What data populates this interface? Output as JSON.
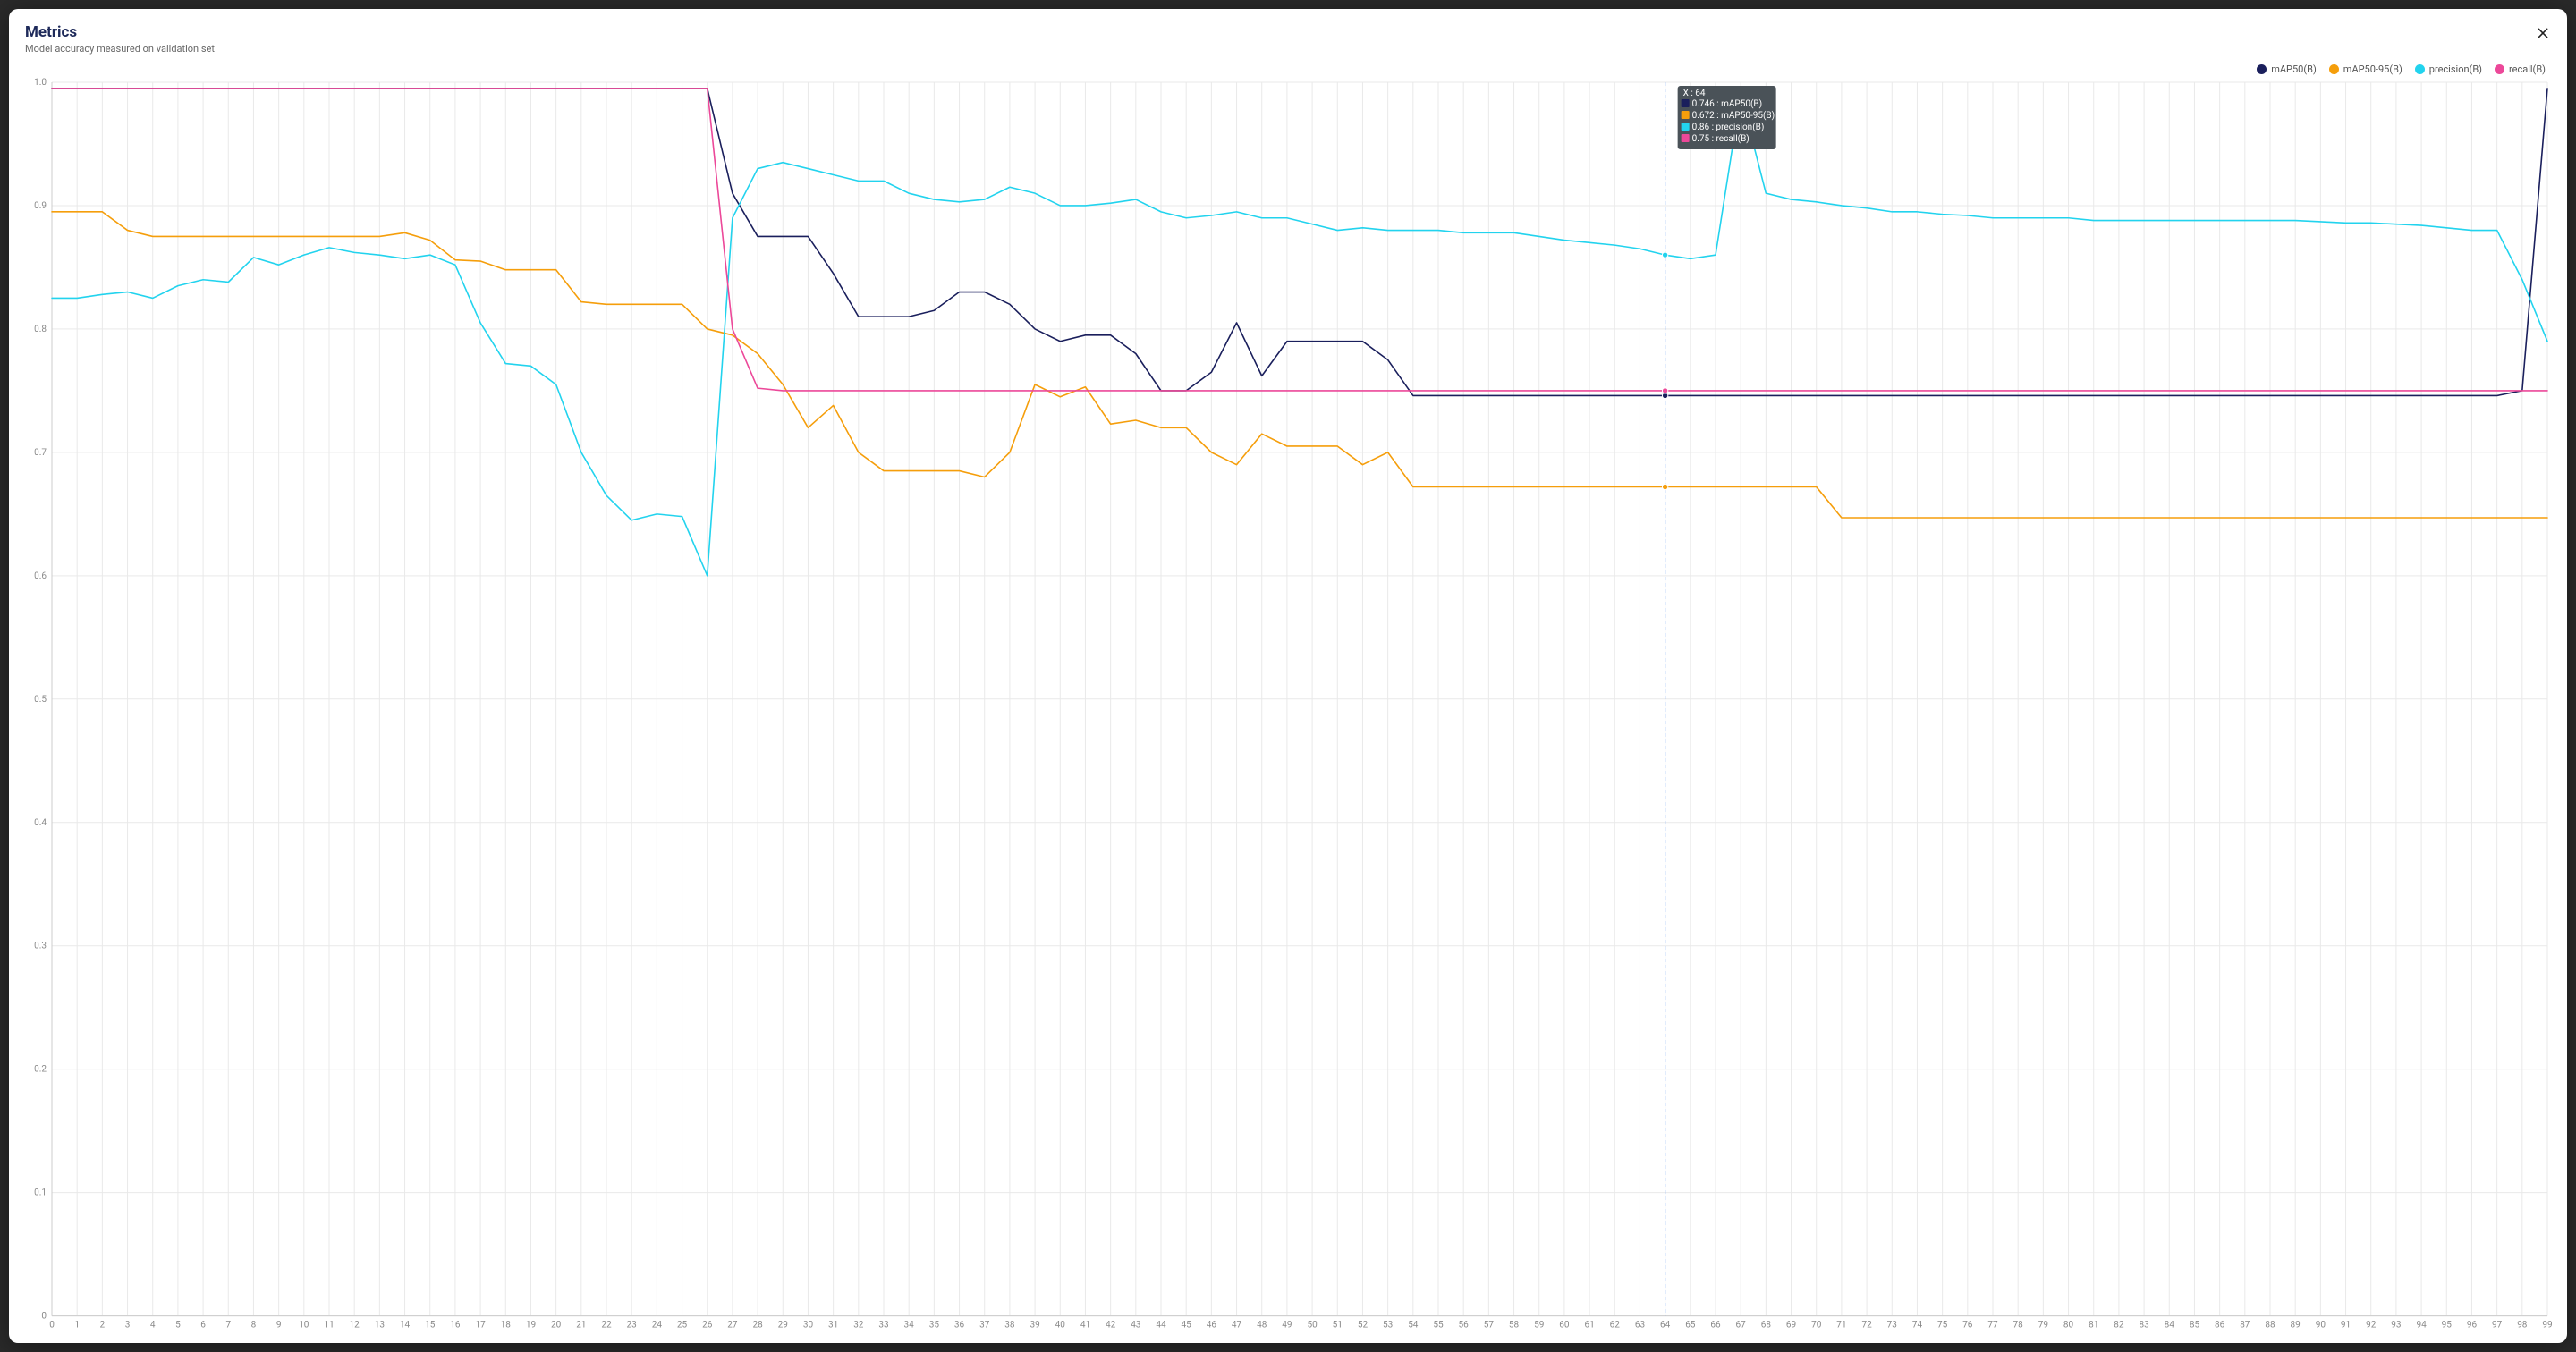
{
  "header": {
    "title": "Metrics",
    "subtitle": "Model accuracy measured on validation set"
  },
  "chart": {
    "type": "line",
    "background_color": "#ffffff",
    "grid_color": "#e9e9e9",
    "axis_color": "#cccccc",
    "tick_color": "#888888",
    "tick_fontsize": 10,
    "x": {
      "min": 0,
      "max": 99,
      "tick_step": 1
    },
    "y": {
      "min": 0,
      "max": 1.0,
      "tick_step": 0.1,
      "labels": [
        "0",
        "0.1",
        "0.2",
        "0.3",
        "0.4",
        "0.5",
        "0.6",
        "0.7",
        "0.8",
        "0.9",
        "1.0"
      ]
    },
    "crosshair": {
      "x": 64,
      "color": "#3b82f6",
      "dash": "4 3",
      "width": 1
    },
    "tooltip": {
      "bg": "#4a5258",
      "text_color": "#ffffff",
      "header": "X : 64",
      "rows": [
        {
          "color": "#1a1f5c",
          "value": "0.746",
          "name": "mAP50(B)"
        },
        {
          "color": "#f59e0b",
          "value": "0.672",
          "name": "mAP50-95(B)"
        },
        {
          "color": "#22d3ee",
          "value": "0.86",
          "name": "precision(B)"
        },
        {
          "color": "#ec4899",
          "value": "0.75",
          "name": "recall(B)"
        }
      ]
    },
    "legend": {
      "items": [
        {
          "label": "mAP50(B)",
          "color": "#1a1f5c"
        },
        {
          "label": "mAP50-95(B)",
          "color": "#f59e0b"
        },
        {
          "label": "precision(B)",
          "color": "#22d3ee"
        },
        {
          "label": "recall(B)",
          "color": "#ec4899"
        }
      ]
    },
    "series": [
      {
        "name": "mAP50(B)",
        "color": "#1a1f5c",
        "width": 1.6,
        "values": [
          0.995,
          0.995,
          0.995,
          0.995,
          0.995,
          0.995,
          0.995,
          0.995,
          0.995,
          0.995,
          0.995,
          0.995,
          0.995,
          0.995,
          0.995,
          0.995,
          0.995,
          0.995,
          0.995,
          0.995,
          0.995,
          0.995,
          0.995,
          0.995,
          0.995,
          0.995,
          0.995,
          0.91,
          0.875,
          0.875,
          0.875,
          0.845,
          0.81,
          0.81,
          0.81,
          0.815,
          0.83,
          0.83,
          0.82,
          0.8,
          0.79,
          0.795,
          0.795,
          0.78,
          0.75,
          0.75,
          0.765,
          0.805,
          0.762,
          0.79,
          0.79,
          0.79,
          0.79,
          0.775,
          0.746,
          0.746,
          0.746,
          0.746,
          0.746,
          0.746,
          0.746,
          0.746,
          0.746,
          0.746,
          0.746,
          0.746,
          0.746,
          0.746,
          0.746,
          0.746,
          0.746,
          0.746,
          0.746,
          0.746,
          0.746,
          0.746,
          0.746,
          0.746,
          0.746,
          0.746,
          0.746,
          0.746,
          0.746,
          0.746,
          0.746,
          0.746,
          0.746,
          0.746,
          0.746,
          0.746,
          0.746,
          0.746,
          0.746,
          0.746,
          0.746,
          0.746,
          0.746,
          0.746,
          0.75,
          0.995
        ]
      },
      {
        "name": "mAP50-95(B)",
        "color": "#f59e0b",
        "width": 1.6,
        "values": [
          0.895,
          0.895,
          0.895,
          0.88,
          0.875,
          0.875,
          0.875,
          0.875,
          0.875,
          0.875,
          0.875,
          0.875,
          0.875,
          0.875,
          0.878,
          0.872,
          0.856,
          0.855,
          0.848,
          0.848,
          0.848,
          0.822,
          0.82,
          0.82,
          0.82,
          0.82,
          0.8,
          0.795,
          0.78,
          0.755,
          0.72,
          0.738,
          0.7,
          0.685,
          0.685,
          0.685,
          0.685,
          0.68,
          0.7,
          0.755,
          0.745,
          0.753,
          0.723,
          0.726,
          0.72,
          0.72,
          0.7,
          0.69,
          0.715,
          0.705,
          0.705,
          0.705,
          0.69,
          0.7,
          0.672,
          0.672,
          0.672,
          0.672,
          0.672,
          0.672,
          0.672,
          0.672,
          0.672,
          0.672,
          0.672,
          0.672,
          0.672,
          0.672,
          0.672,
          0.672,
          0.672,
          0.647,
          0.647,
          0.647,
          0.647,
          0.647,
          0.647,
          0.647,
          0.647,
          0.647,
          0.647,
          0.647,
          0.647,
          0.647,
          0.647,
          0.647,
          0.647,
          0.647,
          0.647,
          0.647,
          0.647,
          0.647,
          0.647,
          0.647,
          0.647,
          0.647,
          0.647,
          0.647,
          0.647,
          0.647
        ]
      },
      {
        "name": "precision(B)",
        "color": "#22d3ee",
        "width": 1.6,
        "values": [
          0.825,
          0.825,
          0.828,
          0.83,
          0.825,
          0.835,
          0.84,
          0.838,
          0.858,
          0.852,
          0.86,
          0.866,
          0.862,
          0.86,
          0.857,
          0.86,
          0.852,
          0.805,
          0.772,
          0.77,
          0.755,
          0.7,
          0.665,
          0.645,
          0.65,
          0.648,
          0.6,
          0.89,
          0.93,
          0.935,
          0.93,
          0.925,
          0.92,
          0.92,
          0.91,
          0.905,
          0.903,
          0.905,
          0.915,
          0.91,
          0.9,
          0.9,
          0.902,
          0.905,
          0.895,
          0.89,
          0.892,
          0.895,
          0.89,
          0.89,
          0.885,
          0.88,
          0.882,
          0.88,
          0.88,
          0.88,
          0.878,
          0.878,
          0.878,
          0.875,
          0.872,
          0.87,
          0.868,
          0.865,
          0.86,
          0.857,
          0.86,
          0.99,
          0.91,
          0.905,
          0.903,
          0.9,
          0.898,
          0.895,
          0.895,
          0.893,
          0.892,
          0.89,
          0.89,
          0.89,
          0.89,
          0.888,
          0.888,
          0.888,
          0.888,
          0.888,
          0.888,
          0.888,
          0.888,
          0.888,
          0.887,
          0.886,
          0.886,
          0.885,
          0.884,
          0.882,
          0.88,
          0.88,
          0.84,
          0.79
        ]
      },
      {
        "name": "recall(B)",
        "color": "#ec4899",
        "width": 1.6,
        "values": [
          0.995,
          0.995,
          0.995,
          0.995,
          0.995,
          0.995,
          0.995,
          0.995,
          0.995,
          0.995,
          0.995,
          0.995,
          0.995,
          0.995,
          0.995,
          0.995,
          0.995,
          0.995,
          0.995,
          0.995,
          0.995,
          0.995,
          0.995,
          0.995,
          0.995,
          0.995,
          0.995,
          0.8,
          0.752,
          0.75,
          0.75,
          0.75,
          0.75,
          0.75,
          0.75,
          0.75,
          0.75,
          0.75,
          0.75,
          0.75,
          0.75,
          0.75,
          0.75,
          0.75,
          0.75,
          0.75,
          0.75,
          0.75,
          0.75,
          0.75,
          0.75,
          0.75,
          0.75,
          0.75,
          0.75,
          0.75,
          0.75,
          0.75,
          0.75,
          0.75,
          0.75,
          0.75,
          0.75,
          0.75,
          0.75,
          0.75,
          0.75,
          0.75,
          0.75,
          0.75,
          0.75,
          0.75,
          0.75,
          0.75,
          0.75,
          0.75,
          0.75,
          0.75,
          0.75,
          0.75,
          0.75,
          0.75,
          0.75,
          0.75,
          0.75,
          0.75,
          0.75,
          0.75,
          0.75,
          0.75,
          0.75,
          0.75,
          0.75,
          0.75,
          0.75,
          0.75,
          0.75,
          0.75,
          0.75,
          0.75
        ]
      }
    ],
    "line_width": 1.6
  }
}
